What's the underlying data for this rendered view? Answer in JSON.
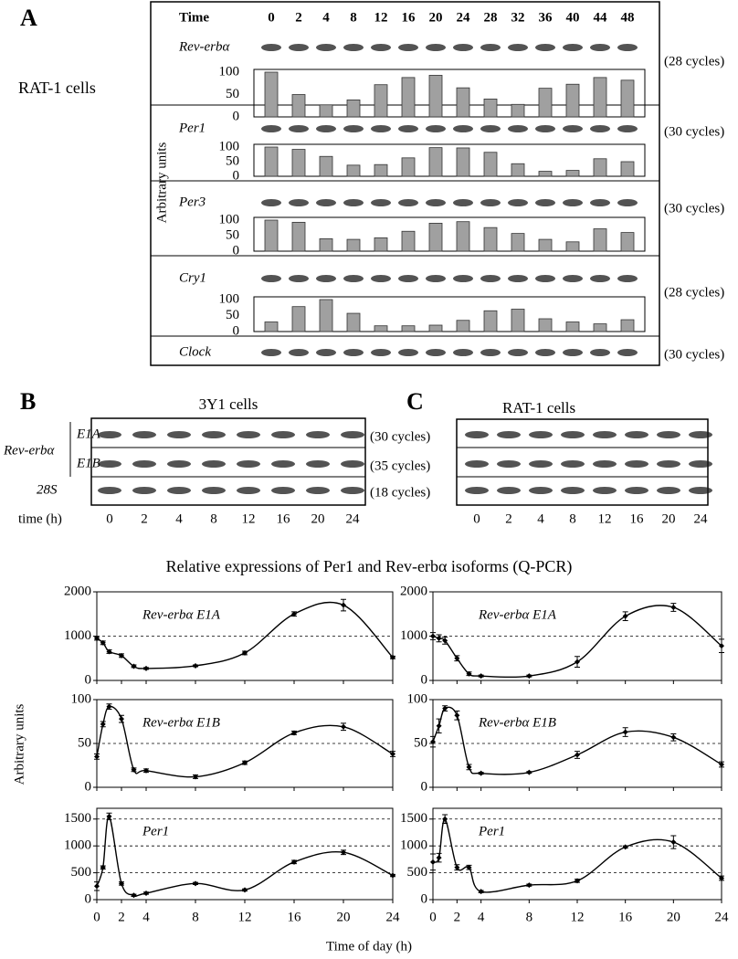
{
  "panel_a": {
    "label": "A",
    "cells": "RAT-1 cells",
    "y_label": "Arbitrary units",
    "time_label": "Time",
    "times": [
      0,
      2,
      4,
      8,
      12,
      16,
      20,
      24,
      28,
      32,
      36,
      40,
      44,
      48
    ],
    "rows": [
      {
        "gene": "Rev-erbα",
        "cycles": "(28 cycles)"
      },
      {
        "gene": "Per1",
        "cycles": "(30 cycles)"
      },
      {
        "gene": "Per3",
        "cycles": "(30 cycles)"
      },
      {
        "gene": "Cry1",
        "cycles": "(28 cycles)"
      },
      {
        "gene": "Clock",
        "cycles": "(30 cycles)"
      }
    ]
  },
  "panel_b": {
    "label": "B",
    "title": "3Y1 cells",
    "group": "Rev-erbα",
    "rows": [
      {
        "name": "E1A",
        "cycles": "(30 cycles)"
      },
      {
        "name": "E1B",
        "cycles": "(35 cycles)"
      },
      {
        "name": "28S",
        "cycles": "(18 cycles)"
      }
    ],
    "time_label": "time (h)",
    "times": [
      0,
      2,
      4,
      8,
      12,
      16,
      20,
      24
    ]
  },
  "panel_c": {
    "label": "C",
    "title": "RAT-1 cells",
    "times": [
      0,
      2,
      4,
      8,
      12,
      16,
      20,
      24
    ]
  },
  "qpcr": {
    "title": "Relative expressions of Per1 and Rev-erbα isoforms (Q-PCR)",
    "y_label": "Arbitrary units",
    "x_label": "Time of day (h)"
  },
  "chart_data": [
    {
      "type": "bar",
      "values": [
        100,
        50,
        27,
        38,
        72,
        88,
        93,
        65,
        40,
        28,
        64,
        73,
        88,
        82
      ],
      "ylim": [
        0,
        100
      ],
      "yticks": [
        0,
        50,
        100
      ],
      "color": "#a0a0a0"
    },
    {
      "type": "bar",
      "values": [
        100,
        92,
        68,
        38,
        40,
        63,
        98,
        97,
        82,
        43,
        17,
        20,
        60,
        50
      ],
      "ylim": [
        0,
        100
      ],
      "yticks": [
        0,
        50,
        100
      ],
      "color": "#a0a0a0"
    },
    {
      "type": "bar",
      "values": [
        100,
        93,
        40,
        38,
        43,
        64,
        90,
        95,
        76,
        57,
        38,
        30,
        72,
        60
      ],
      "ylim": [
        0,
        100
      ],
      "yticks": [
        0,
        50,
        100
      ],
      "color": "#a0a0a0"
    },
    {
      "type": "bar",
      "values": [
        30,
        78,
        100,
        57,
        18,
        18,
        20,
        35,
        65,
        70,
        40,
        30,
        24,
        37
      ],
      "ylim": [
        0,
        100
      ],
      "yticks": [
        0,
        50,
        100
      ],
      "color": "#a0a0a0"
    },
    {
      "type": "line",
      "title": "Rev-erbα E1A",
      "x": [
        0,
        0.5,
        1,
        2,
        3,
        4,
        8,
        12,
        16,
        20,
        24
      ],
      "values": [
        950,
        850,
        650,
        560,
        320,
        270,
        330,
        620,
        1500,
        1700,
        520
      ],
      "errors": [
        40,
        40,
        40,
        40,
        30,
        20,
        20,
        40,
        50,
        130,
        30
      ],
      "xlim": [
        0,
        24
      ],
      "xticks": [
        0,
        2,
        4,
        8,
        12,
        16,
        20,
        24
      ],
      "ylim": [
        0,
        2000
      ],
      "yticks": [
        0,
        1000,
        2000
      ],
      "grid": true,
      "color": "#000000"
    },
    {
      "type": "line",
      "title": "Rev-erbα E1A",
      "x": [
        0,
        0.5,
        1,
        2,
        3,
        4,
        8,
        12,
        16,
        20,
        24
      ],
      "values": [
        1000,
        950,
        900,
        500,
        150,
        100,
        100,
        420,
        1450,
        1650,
        780
      ],
      "errors": [
        80,
        80,
        80,
        60,
        40,
        20,
        20,
        120,
        100,
        90,
        150
      ],
      "xlim": [
        0,
        24
      ],
      "xticks": [
        0,
        2,
        4,
        8,
        12,
        16,
        20,
        24
      ],
      "ylim": [
        0,
        2000
      ],
      "yticks": [
        0,
        1000,
        2000
      ],
      "grid": true,
      "color": "#000000"
    },
    {
      "type": "line",
      "title": "Rev-erbα E1B",
      "x": [
        0,
        0.5,
        1,
        2,
        3,
        4,
        8,
        12,
        16,
        20,
        24
      ],
      "values": [
        35,
        72,
        92,
        78,
        20,
        19,
        12,
        28,
        62,
        69,
        38
      ],
      "errors": [
        3,
        3,
        3,
        4,
        2,
        2,
        2,
        2,
        2,
        4,
        3
      ],
      "xlim": [
        0,
        24
      ],
      "xticks": [
        0,
        2,
        4,
        8,
        12,
        16,
        20,
        24
      ],
      "ylim": [
        0,
        100
      ],
      "yticks": [
        0,
        50,
        100
      ],
      "grid": true,
      "color": "#000000"
    },
    {
      "type": "line",
      "title": "Rev-erbα E1B",
      "x": [
        0,
        0.5,
        1,
        2,
        3,
        4,
        8,
        12,
        16,
        20,
        24
      ],
      "values": [
        52,
        70,
        90,
        82,
        23,
        16,
        17,
        37,
        63,
        57,
        26
      ],
      "errors": [
        6,
        8,
        3,
        5,
        3,
        1,
        1,
        4,
        5,
        4,
        3
      ],
      "xlim": [
        0,
        24
      ],
      "xticks": [
        0,
        2,
        4,
        8,
        12,
        16,
        20,
        24
      ],
      "ylim": [
        0,
        100
      ],
      "yticks": [
        0,
        50,
        100
      ],
      "grid": true,
      "color": "#000000"
    },
    {
      "type": "line",
      "title": "Per1",
      "x": [
        0,
        0.5,
        1,
        2,
        3,
        4,
        8,
        12,
        16,
        20,
        24
      ],
      "values": [
        250,
        600,
        1550,
        300,
        80,
        120,
        300,
        180,
        700,
        880,
        450
      ],
      "errors": [
        80,
        30,
        60,
        30,
        20,
        20,
        20,
        20,
        30,
        40,
        20
      ],
      "xlim": [
        0,
        24
      ],
      "xticks": [
        0,
        2,
        4,
        8,
        12,
        16,
        20,
        24
      ],
      "ylim": [
        0,
        1700
      ],
      "yticks": [
        0,
        500,
        1000,
        1500
      ],
      "grid": true,
      "color": "#000000"
    },
    {
      "type": "line",
      "title": "Per1",
      "x": [
        0,
        0.5,
        1,
        2,
        3,
        4,
        8,
        12,
        16,
        20,
        24
      ],
      "values": [
        700,
        780,
        1500,
        600,
        600,
        150,
        270,
        350,
        980,
        1070,
        400
      ],
      "errors": [
        150,
        80,
        80,
        50,
        40,
        20,
        20,
        30,
        20,
        120,
        40
      ],
      "xlim": [
        0,
        24
      ],
      "xticks": [
        0,
        2,
        4,
        8,
        12,
        16,
        20,
        24
      ],
      "ylim": [
        0,
        1700
      ],
      "yticks": [
        0,
        500,
        1000,
        1500
      ],
      "grid": true,
      "color": "#000000"
    }
  ]
}
